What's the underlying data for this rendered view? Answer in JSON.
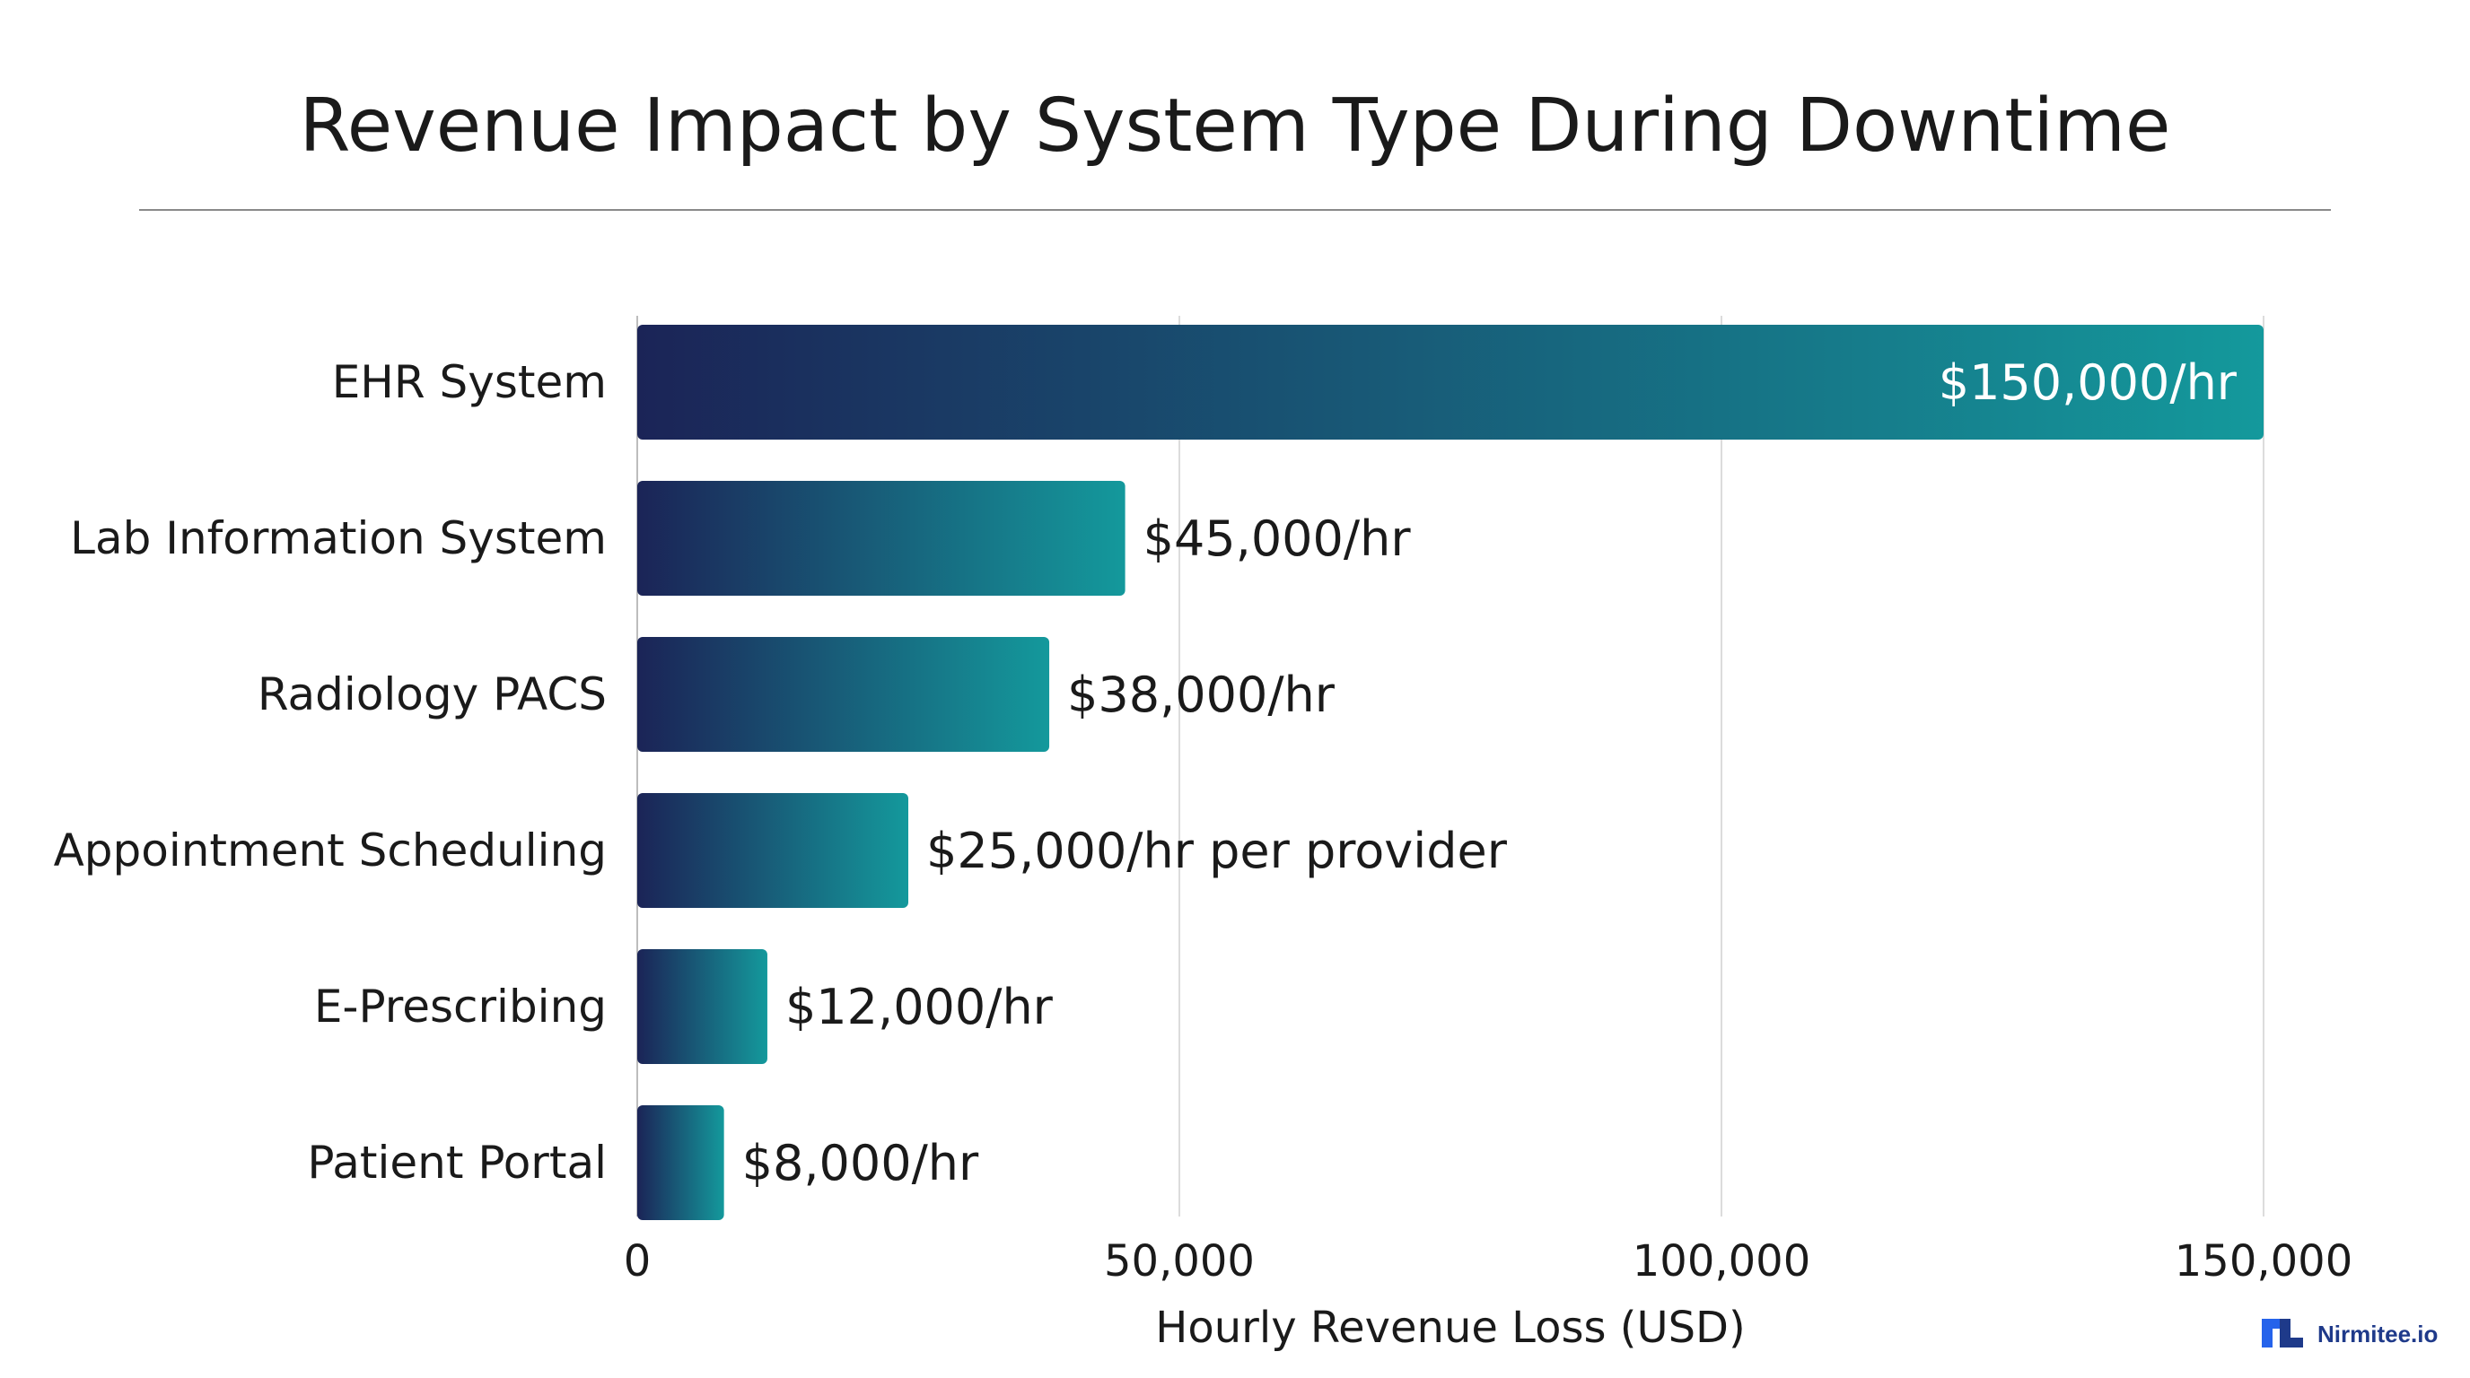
{
  "chart_data": {
    "type": "bar",
    "orientation": "horizontal",
    "title": "Revenue Impact by System Type During Downtime",
    "xlabel": "Hourly Revenue Loss (USD)",
    "ylabel": "",
    "categories": [
      "EHR System",
      "Lab Information System",
      "Radiology PACS",
      "Appointment Scheduling",
      "E-Prescribing",
      "Patient Portal"
    ],
    "values": [
      150000,
      45000,
      38000,
      25000,
      12000,
      8000
    ],
    "value_labels": [
      "$150,000/hr",
      "$45,000/hr",
      "$38,000/hr",
      "$25,000/hr per provider",
      "$12,000/hr",
      "$8,000/hr"
    ],
    "xlim": [
      0,
      150000
    ],
    "xticks": [
      0,
      50000,
      100000,
      150000
    ],
    "xtick_labels": [
      "0",
      "50,000",
      "100,000",
      "150,000"
    ],
    "grid": "vertical",
    "legend": "none",
    "colors": {
      "bar_start": "#1b2457",
      "bar_end": "#14999c",
      "grid": "#dcdcdc",
      "divider": "#8a8a8a",
      "axis": "#bdbdbd"
    }
  },
  "brand": {
    "name": "Nirmitee.io",
    "icon": "nirmitee-logo-icon",
    "color": "#1f3a8a"
  }
}
